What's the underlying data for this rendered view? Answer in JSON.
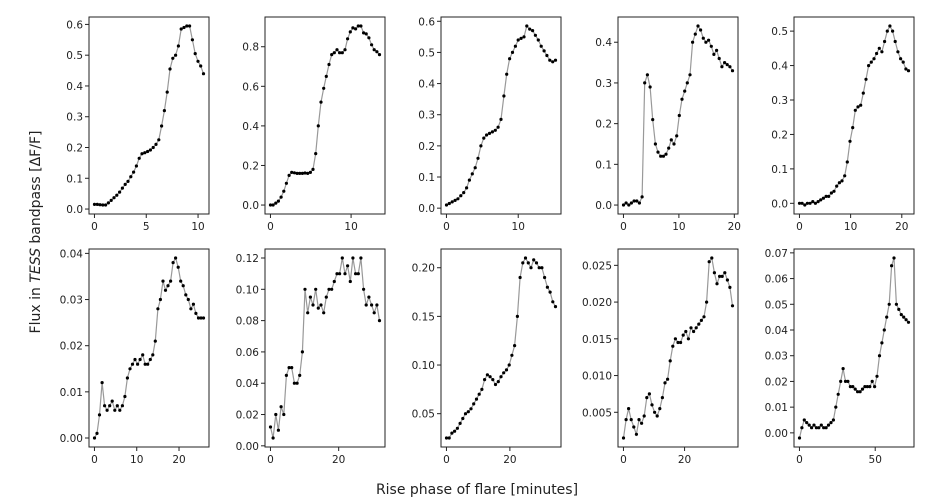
{
  "chart_data": {
    "type": "line",
    "xlabel": "Rise phase of flare [minutes]",
    "ylabel_parts": [
      "Flux in ",
      "TESS",
      " bandpass [ΔF/F]"
    ],
    "line_color": "#999999",
    "marker_color": "#000000",
    "panels": [
      {
        "x_step": 0.27,
        "y": [
          0.015,
          0.015,
          0.014,
          0.013,
          0.013,
          0.02,
          0.028,
          0.037,
          0.045,
          0.055,
          0.068,
          0.08,
          0.09,
          0.105,
          0.12,
          0.14,
          0.165,
          0.18,
          0.183,
          0.187,
          0.192,
          0.2,
          0.21,
          0.225,
          0.27,
          0.32,
          0.38,
          0.455,
          0.49,
          0.5,
          0.53,
          0.585,
          0.59,
          0.595,
          0.595,
          0.55,
          0.505,
          0.48,
          0.465,
          0.44
        ],
        "yticks": [
          0,
          0.1,
          0.2,
          0.3,
          0.4,
          0.5,
          0.6
        ],
        "ytick_labels": [
          "0.0",
          "0.1",
          "0.2",
          "0.3",
          "0.4",
          "0.5",
          "0.6"
        ],
        "xticks": [
          0,
          5,
          10
        ],
        "xtick_labels": [
          "0",
          "5",
          "10"
        ]
      },
      {
        "x_step": 0.33,
        "y": [
          0,
          0,
          0.01,
          0.02,
          0.04,
          0.07,
          0.11,
          0.15,
          0.165,
          0.163,
          0.16,
          0.16,
          0.16,
          0.162,
          0.16,
          0.165,
          0.18,
          0.26,
          0.4,
          0.52,
          0.59,
          0.65,
          0.71,
          0.76,
          0.77,
          0.785,
          0.77,
          0.77,
          0.785,
          0.84,
          0.875,
          0.895,
          0.89,
          0.905,
          0.905,
          0.87,
          0.865,
          0.845,
          0.81,
          0.785,
          0.775,
          0.76
        ],
        "yticks": [
          0,
          0.2,
          0.4,
          0.6,
          0.8
        ],
        "ytick_labels": [
          "0.0",
          "0.2",
          "0.4",
          "0.6",
          "0.8"
        ],
        "xticks": [
          0,
          10
        ],
        "xtick_labels": [
          "0",
          "10"
        ]
      },
      {
        "x_step": 0.4,
        "y": [
          0.01,
          0.015,
          0.02,
          0.025,
          0.03,
          0.04,
          0.05,
          0.065,
          0.09,
          0.11,
          0.13,
          0.16,
          0.2,
          0.225,
          0.235,
          0.24,
          0.245,
          0.25,
          0.26,
          0.285,
          0.36,
          0.43,
          0.48,
          0.5,
          0.52,
          0.54,
          0.545,
          0.55,
          0.585,
          0.575,
          0.57,
          0.555,
          0.54,
          0.52,
          0.505,
          0.49,
          0.475,
          0.47,
          0.475
        ],
        "yticks": [
          0,
          0.1,
          0.2,
          0.3,
          0.4,
          0.5,
          0.6
        ],
        "ytick_labels": [
          "0.0",
          "0.1",
          "0.2",
          "0.3",
          "0.4",
          "0.5",
          "0.6"
        ],
        "xticks": [
          0,
          10
        ],
        "xtick_labels": [
          "0",
          "10"
        ]
      },
      {
        "x_step": 0.48,
        "y": [
          0,
          0.005,
          0,
          0.005,
          0.01,
          0.01,
          0.005,
          0.02,
          0.3,
          0.32,
          0.29,
          0.21,
          0.15,
          0.13,
          0.12,
          0.12,
          0.125,
          0.14,
          0.16,
          0.15,
          0.17,
          0.22,
          0.26,
          0.28,
          0.3,
          0.32,
          0.4,
          0.42,
          0.44,
          0.43,
          0.41,
          0.4,
          0.405,
          0.39,
          0.37,
          0.38,
          0.36,
          0.34,
          0.35,
          0.345,
          0.34,
          0.33
        ],
        "yticks": [
          0,
          0.1,
          0.2,
          0.3,
          0.4
        ],
        "ytick_labels": [
          "0.0",
          "0.1",
          "0.2",
          "0.3",
          "0.4"
        ],
        "xticks": [
          0,
          10,
          20
        ],
        "xtick_labels": [
          "0",
          "10",
          "20"
        ]
      },
      {
        "x_step": 0.52,
        "y": [
          0,
          0,
          -0.005,
          0,
          0,
          0.005,
          0,
          0.005,
          0.01,
          0.015,
          0.02,
          0.02,
          0.03,
          0.035,
          0.05,
          0.06,
          0.065,
          0.08,
          0.12,
          0.18,
          0.22,
          0.27,
          0.28,
          0.285,
          0.32,
          0.36,
          0.4,
          0.41,
          0.42,
          0.435,
          0.45,
          0.44,
          0.47,
          0.5,
          0.515,
          0.5,
          0.47,
          0.44,
          0.42,
          0.41,
          0.39,
          0.385
        ],
        "yticks": [
          0,
          0.1,
          0.2,
          0.3,
          0.4,
          0.5
        ],
        "ytick_labels": [
          "0.0",
          "0.1",
          "0.2",
          "0.3",
          "0.4",
          "0.5"
        ],
        "xticks": [
          0,
          10,
          20
        ],
        "xtick_labels": [
          "0",
          "10",
          "20"
        ]
      },
      {
        "x_step": 0.6,
        "y": [
          0,
          0.001,
          0.005,
          0.012,
          0.007,
          0.006,
          0.007,
          0.008,
          0.006,
          0.007,
          0.006,
          0.007,
          0.009,
          0.013,
          0.015,
          0.016,
          0.017,
          0.016,
          0.017,
          0.018,
          0.016,
          0.016,
          0.017,
          0.018,
          0.021,
          0.028,
          0.03,
          0.034,
          0.032,
          0.033,
          0.034,
          0.038,
          0.039,
          0.037,
          0.034,
          0.033,
          0.031,
          0.03,
          0.028,
          0.029,
          0.027,
          0.026,
          0.026,
          0.026
        ],
        "yticks": [
          0,
          0.01,
          0.02,
          0.03,
          0.04
        ],
        "ytick_labels": [
          "0.00",
          "0.01",
          "0.02",
          "0.03",
          "0.04"
        ],
        "xticks": [
          0,
          10,
          20
        ],
        "xtick_labels": [
          "0",
          "10",
          "20"
        ]
      },
      {
        "x_step": 0.78,
        "y": [
          0.012,
          0.005,
          0.02,
          0.01,
          0.025,
          0.02,
          0.045,
          0.05,
          0.05,
          0.04,
          0.04,
          0.045,
          0.06,
          0.1,
          0.085,
          0.095,
          0.09,
          0.1,
          0.088,
          0.09,
          0.085,
          0.095,
          0.1,
          0.1,
          0.105,
          0.11,
          0.11,
          0.12,
          0.11,
          0.115,
          0.105,
          0.12,
          0.11,
          0.11,
          0.12,
          0.1,
          0.09,
          0.095,
          0.09,
          0.085,
          0.09,
          0.08
        ],
        "yticks": [
          0,
          0.02,
          0.04,
          0.06,
          0.08,
          0.1,
          0.12
        ],
        "ytick_labels": [
          "0.00",
          "0.02",
          "0.04",
          "0.06",
          "0.08",
          "0.10",
          "0.12"
        ],
        "xticks": [
          0,
          20
        ],
        "xtick_labels": [
          "0",
          "20"
        ]
      },
      {
        "x_step": 0.86,
        "y": [
          0.025,
          0.025,
          0.03,
          0.032,
          0.035,
          0.04,
          0.045,
          0.05,
          0.052,
          0.055,
          0.06,
          0.065,
          0.07,
          0.075,
          0.085,
          0.09,
          0.088,
          0.085,
          0.08,
          0.083,
          0.088,
          0.092,
          0.095,
          0.1,
          0.11,
          0.12,
          0.15,
          0.19,
          0.205,
          0.21,
          0.205,
          0.2,
          0.208,
          0.205,
          0.2,
          0.2,
          0.19,
          0.18,
          0.175,
          0.165,
          0.16
        ],
        "yticks": [
          0.05,
          0.1,
          0.15,
          0.2
        ],
        "ytick_labels": [
          "0.05",
          "0.10",
          "0.15",
          "0.20"
        ],
        "xticks": [
          0,
          20
        ],
        "xtick_labels": [
          "0",
          "20"
        ]
      },
      {
        "x_step": 0.85,
        "y": [
          0.0015,
          0.004,
          0.0055,
          0.004,
          0.003,
          0.002,
          0.004,
          0.0035,
          0.0045,
          0.007,
          0.0075,
          0.006,
          0.005,
          0.0045,
          0.0055,
          0.007,
          0.009,
          0.0095,
          0.012,
          0.014,
          0.015,
          0.0145,
          0.0145,
          0.0155,
          0.016,
          0.015,
          0.0165,
          0.016,
          0.0165,
          0.017,
          0.0175,
          0.018,
          0.02,
          0.0255,
          0.026,
          0.024,
          0.0225,
          0.0235,
          0.0235,
          0.024,
          0.023,
          0.022,
          0.0195
        ],
        "yticks": [
          0.005,
          0.01,
          0.015,
          0.02,
          0.025
        ],
        "ytick_labels": [
          "0.005",
          "0.010",
          "0.015",
          "0.020",
          "0.025"
        ],
        "xticks": [
          0,
          20
        ],
        "xtick_labels": [
          "0",
          "20"
        ]
      },
      {
        "x_step": 1.6,
        "y": [
          -0.002,
          0.002,
          0.005,
          0.004,
          0.003,
          0.002,
          0.003,
          0.002,
          0.002,
          0.003,
          0.002,
          0.002,
          0.003,
          0.004,
          0.005,
          0.01,
          0.015,
          0.02,
          0.025,
          0.02,
          0.02,
          0.018,
          0.018,
          0.017,
          0.016,
          0.016,
          0.017,
          0.018,
          0.018,
          0.018,
          0.02,
          0.018,
          0.022,
          0.03,
          0.035,
          0.04,
          0.045,
          0.05,
          0.065,
          0.068,
          0.05,
          0.048,
          0.046,
          0.045,
          0.044,
          0.043
        ],
        "yticks": [
          0,
          0.01,
          0.02,
          0.03,
          0.04,
          0.05,
          0.06,
          0.07
        ],
        "ytick_labels": [
          "0.00",
          "0.01",
          "0.02",
          "0.03",
          "0.04",
          "0.05",
          "0.06",
          "0.07"
        ],
        "xticks": [
          0,
          50
        ],
        "xtick_labels": [
          "0",
          "50"
        ]
      }
    ]
  }
}
